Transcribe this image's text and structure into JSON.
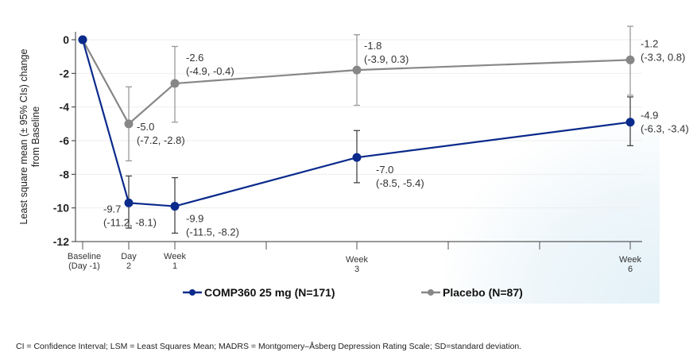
{
  "chart_data": {
    "type": "line",
    "ylabel": "Least square mean (± 95% CIs) change from Baseline",
    "ylabel_lines": [
      "Least square mean (± 95% CIs) change",
      "from Baseline"
    ],
    "ylim": [
      -12,
      0
    ],
    "yticks": [
      0,
      -2,
      -4,
      -6,
      -8,
      -10,
      -12
    ],
    "categories": [
      [
        "Baseline",
        "(Day -1)"
      ],
      [
        "Day",
        "2"
      ],
      [
        "Week",
        "1"
      ],
      [
        "Week",
        "3"
      ],
      [
        "Week",
        "6"
      ]
    ],
    "grid": "horizontal",
    "legend_placement": "bottom",
    "series": [
      {
        "name": "COMP360 25 mg (N=171)",
        "color": "#0a2a8c",
        "values": [
          0,
          -9.7,
          -9.9,
          -7.0,
          -4.9
        ],
        "ci_low": [
          null,
          -11.2,
          -11.5,
          -8.5,
          -6.3
        ],
        "ci_high": [
          null,
          -8.1,
          -8.2,
          -5.4,
          -3.4
        ],
        "labels": [
          null,
          [
            "-9.7",
            "(-11.2, -8.1)"
          ],
          [
            "-9.9",
            "(-11.5, -8.2)"
          ],
          [
            "-7.0",
            "(-8.5, -5.4)"
          ],
          [
            "-4.9",
            "(-6.3, -3.4)"
          ]
        ]
      },
      {
        "name": "Placebo (N=87)",
        "color": "#878787",
        "values": [
          0,
          -5.0,
          -2.6,
          -1.8,
          -1.2
        ],
        "ci_low": [
          null,
          -7.2,
          -4.9,
          -3.9,
          -3.3
        ],
        "ci_high": [
          null,
          -2.8,
          -0.4,
          0.3,
          0.8
        ],
        "labels": [
          null,
          [
            "-5.0",
            "(-7.2, -2.8)"
          ],
          [
            "-2.6",
            "(-4.9, -0.4)"
          ],
          [
            "-1.8",
            "(-3.9, 0.3)"
          ],
          [
            "-1.2",
            "(-3.3, 0.8)"
          ]
        ]
      }
    ]
  },
  "footnote": "CI = Confidence Interval; LSM = Least Squares Mean; MADRS = Montgomery–Åsberg Depression Rating Scale; SD=standard deviation."
}
